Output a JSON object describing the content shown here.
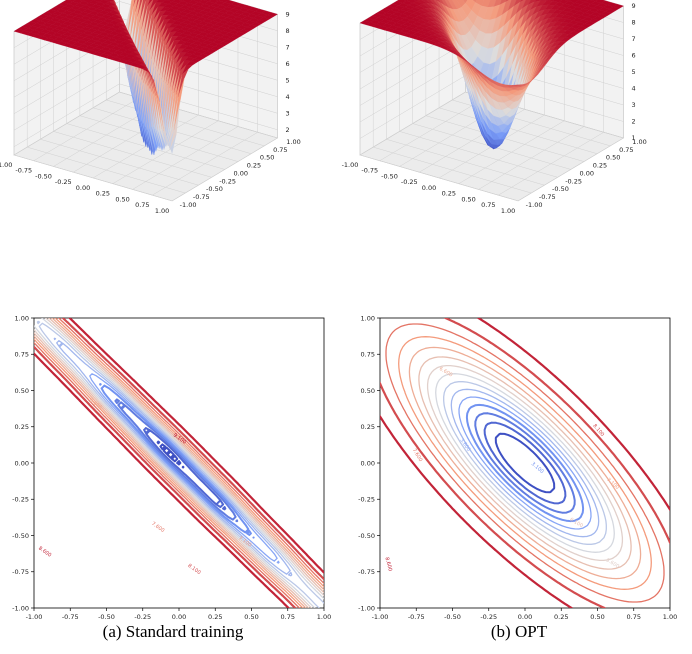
{
  "chart_data": [
    {
      "type": "surface3d",
      "panel": "a-top",
      "xlim": [
        -1,
        1
      ],
      "ylim": [
        -1,
        1
      ],
      "zlim": [
        1.5,
        9
      ],
      "x_ticks": [
        "-1.00",
        "-0.75",
        "-0.50",
        "-0.25",
        "0.00",
        "0.25",
        "0.50",
        "0.75",
        "1.00"
      ],
      "y_ticks": [
        "-1.00",
        "-0.75",
        "-0.50",
        "-0.25",
        "0.00",
        "0.25",
        "0.50",
        "0.75",
        "1.00"
      ],
      "z_ticks": [
        "2",
        "3",
        "4",
        "5",
        "6",
        "7",
        "8",
        "9"
      ],
      "colormap": "coolwarm",
      "description_values": {
        "min_z": 1.5,
        "max_z": 9
      }
    },
    {
      "type": "surface3d",
      "panel": "b-top",
      "xlim": [
        -1,
        1
      ],
      "ylim": [
        -1,
        1
      ],
      "zlim": [
        1,
        9
      ],
      "x_ticks": [
        "-1.00",
        "-0.75",
        "-0.50",
        "-0.25",
        "0.00",
        "0.25",
        "0.50",
        "0.75",
        "1.00"
      ],
      "y_ticks": [
        "-1.00",
        "-0.75",
        "-0.50",
        "-0.25",
        "0.00",
        "0.25",
        "0.50",
        "0.75",
        "1.00"
      ],
      "z_ticks": [
        "1",
        "2",
        "3",
        "4",
        "5",
        "6",
        "7",
        "8",
        "9"
      ],
      "colormap": "coolwarm"
    },
    {
      "type": "contour",
      "panel": "a-bottom",
      "xlim": [
        -1,
        1
      ],
      "ylim": [
        -1,
        1
      ],
      "x_ticks": [
        "-1.00",
        "-0.75",
        "-0.50",
        "-0.25",
        "0.00",
        "0.25",
        "0.50",
        "0.75",
        "1.00"
      ],
      "y_ticks": [
        "-1.00",
        "-0.75",
        "-0.50",
        "-0.25",
        "0.00",
        "0.25",
        "0.50",
        "0.75",
        "1.00"
      ],
      "levels": [
        1.6,
        2.1,
        2.6,
        3.1,
        3.6,
        4.1,
        4.6,
        5.1,
        5.6,
        6.1,
        6.6,
        7.1,
        7.6,
        8.1,
        8.6,
        9.1
      ],
      "level_labels": [
        "9.100",
        "8.600",
        "8.100",
        "7.600",
        "7.100",
        "6.600"
      ]
    },
    {
      "type": "contour",
      "panel": "b-bottom",
      "xlim": [
        -1,
        1
      ],
      "ylim": [
        -1,
        1
      ],
      "x_ticks": [
        "-1.00",
        "-0.75",
        "-0.50",
        "-0.25",
        "0.00",
        "0.25",
        "0.50",
        "0.75",
        "1.00"
      ],
      "y_ticks": [
        "-1.00",
        "-0.75",
        "-0.50",
        "-0.25",
        "0.00",
        "0.25",
        "0.50",
        "0.75",
        "1.00"
      ],
      "levels": [
        1.6,
        2.1,
        2.6,
        3.1,
        3.6,
        4.1,
        4.6,
        5.1,
        5.6,
        6.1,
        6.6,
        7.1,
        7.6,
        8.1,
        8.6
      ],
      "level_labels": [
        "3.100",
        "3.600",
        "8.600",
        "8.100",
        "7.600",
        "7.100",
        "6.600",
        "6.100",
        "5.600"
      ]
    }
  ],
  "captions": {
    "a": "(a) Standard training",
    "b": "(b) OPT"
  },
  "colors": {
    "low": "#3b4cc0",
    "mid": "#dddddd",
    "high": "#b40426"
  }
}
